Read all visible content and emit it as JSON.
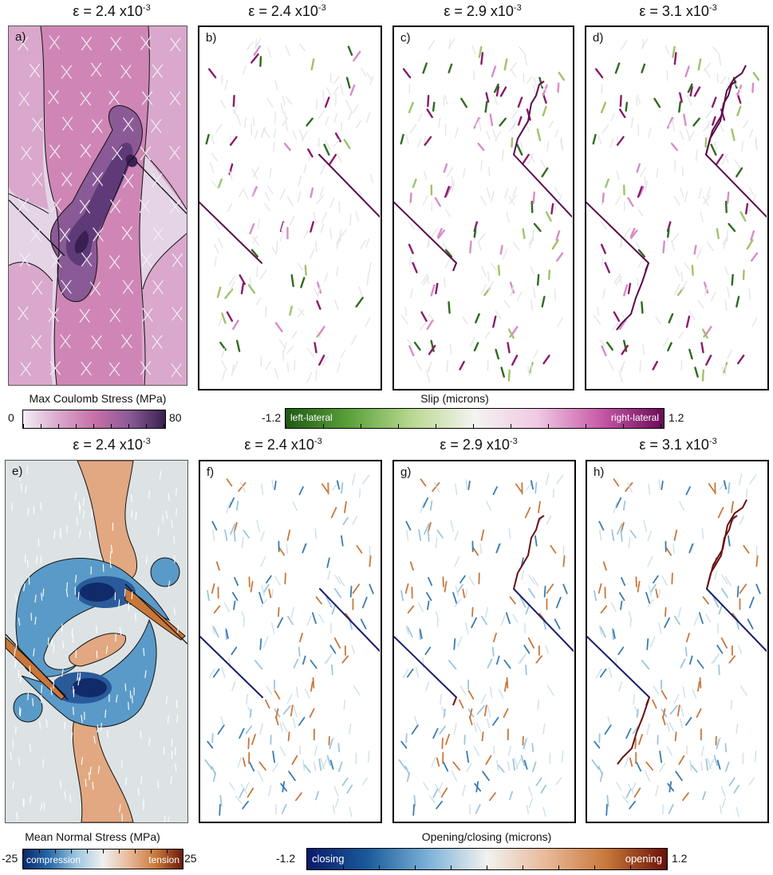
{
  "top_row": {
    "panels": [
      {
        "id": "a",
        "label": "a)",
        "title_base": "ε = 2.4 x10",
        "title_exp": "-3"
      },
      {
        "id": "b",
        "label": "b)",
        "title_base": "ε = 2.4 x10",
        "title_exp": "-3"
      },
      {
        "id": "c",
        "label": "c)",
        "title_base": "ε = 2.9 x10",
        "title_exp": "-3"
      },
      {
        "id": "d",
        "label": "d)",
        "title_base": "ε = 3.1 x10",
        "title_exp": "-3"
      }
    ],
    "colorbar_left": {
      "title": "Max Coulomb Stress (MPa)",
      "min": "0",
      "max": "80"
    },
    "colorbar_right": {
      "title": "Slip (microns)",
      "min": "-1.2",
      "max": "1.2",
      "left_text": "left-lateral",
      "right_text": "right-lateral"
    }
  },
  "bottom_row": {
    "panels": [
      {
        "id": "e",
        "label": "e)",
        "title_base": "ε = 2.4 x10",
        "title_exp": "-3"
      },
      {
        "id": "f",
        "label": "f)",
        "title_base": "ε = 2.4 x10",
        "title_exp": "-3"
      },
      {
        "id": "g",
        "label": "g)",
        "title_base": "ε = 2.9 x10",
        "title_exp": "-3"
      },
      {
        "id": "h",
        "label": "h)",
        "title_base": "ε = 3.1 x10",
        "title_exp": "-3"
      }
    ],
    "colorbar_left": {
      "title": "Mean Normal Stress (MPa)",
      "min": "-25",
      "max": "25",
      "left_text": "compression",
      "right_text": "tension"
    },
    "colorbar_right": {
      "title": "Opening/closing (microns)",
      "min": "-1.2",
      "max": "1.2",
      "left_text": "closing",
      "right_text": "opening"
    }
  },
  "colors": {
    "fault_purple": "#5a0a4a",
    "fault_navy": "#1a1f6e",
    "fault_red": "#6b0f0f",
    "slip_green": "#2e6b1e",
    "slip_light_green": "#9cc46a",
    "slip_pink": "#d98cc8",
    "slip_magenta": "#8a1a6a",
    "open_blue": "#3a7bb0",
    "open_light_blue": "#9cc6e0",
    "open_orange": "#c8773a",
    "coulomb_light": "#e8dcea",
    "coulomb_mid": "#c870a8",
    "coulomb_dark": "#4a2a6a",
    "normal_bg": "#dde3e4",
    "normal_blue": "#5a9ac8",
    "normal_orange": "#e2a882"
  }
}
